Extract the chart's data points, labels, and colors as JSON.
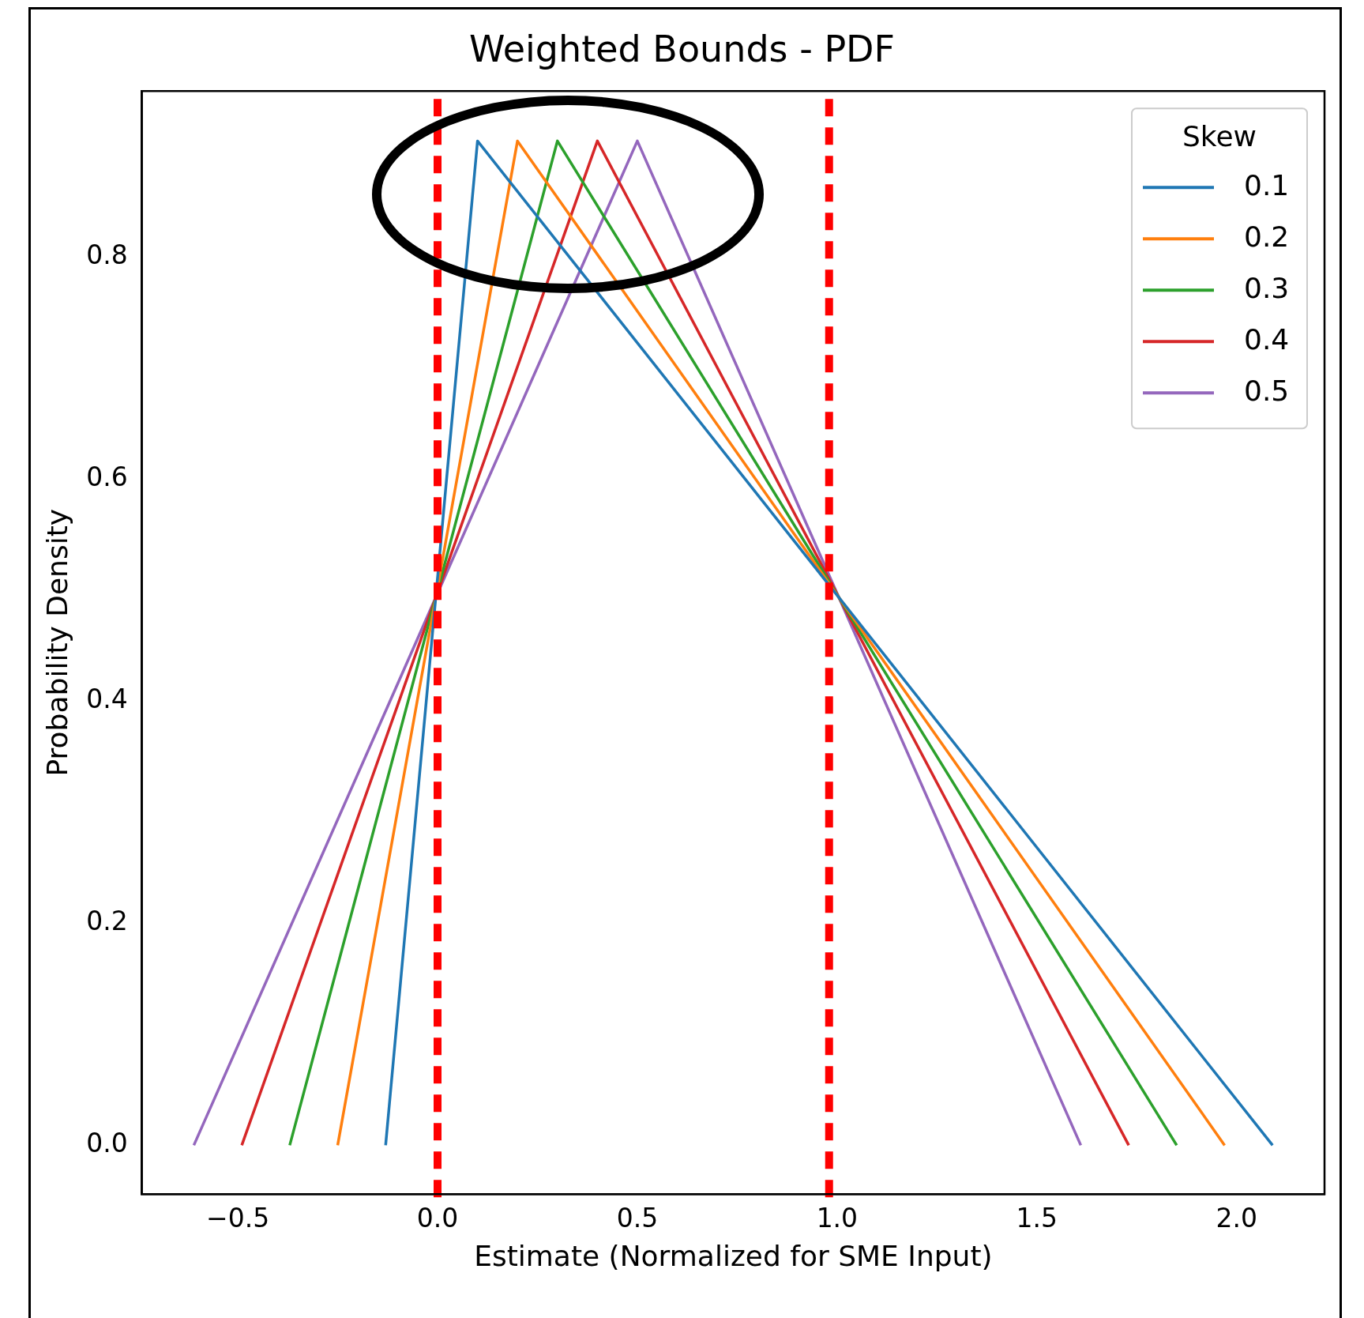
{
  "chart_data": {
    "type": "line",
    "title": "Weighted Bounds - PDF",
    "xlabel": "Estimate (Normalized for SME Input)",
    "ylabel": "Probability Density",
    "legend_title": "Skew",
    "legend": "top right",
    "grid": false,
    "marker": "none",
    "line_style": "solid",
    "xlim": [
      -0.74,
      2.22
    ],
    "ylim": [
      -0.044,
      0.95
    ],
    "xticks": [
      {
        "value": -0.5,
        "label": "−0.5"
      },
      {
        "value": 0,
        "label": "0.0"
      },
      {
        "value": 0.5,
        "label": "0.5"
      },
      {
        "value": 1,
        "label": "1.0"
      },
      {
        "value": 1.5,
        "label": "1.5"
      },
      {
        "value": 2,
        "label": "2.0"
      }
    ],
    "yticks": [
      {
        "value": 0,
        "label": "0.0"
      },
      {
        "value": 0.2,
        "label": "0.2"
      },
      {
        "value": 0.4,
        "label": "0.4"
      },
      {
        "value": 0.6,
        "label": "0.6"
      },
      {
        "value": 0.8,
        "label": "0.8"
      }
    ],
    "series": [
      {
        "name": "0.1",
        "color": "#1f77b4",
        "x": [
          -0.13,
          0.1,
          2.09
        ],
        "values": [
          0,
          0.905,
          0
        ]
      },
      {
        "name": "0.2",
        "color": "#ff7f0e",
        "x": [
          -0.25,
          0.2,
          1.97
        ],
        "values": [
          0,
          0.905,
          0
        ]
      },
      {
        "name": "0.3",
        "color": "#2ca02c",
        "x": [
          -0.37,
          0.3,
          1.85
        ],
        "values": [
          0,
          0.905,
          0
        ]
      },
      {
        "name": "0.4",
        "color": "#d62728",
        "x": [
          -0.49,
          0.4,
          1.73
        ],
        "values": [
          0,
          0.905,
          0
        ]
      },
      {
        "name": "0.5",
        "color": "#9467bd",
        "x": [
          -0.61,
          0.5,
          1.61
        ],
        "values": [
          0,
          0.905,
          0
        ]
      }
    ],
    "ref_lines": [
      {
        "axis": "x",
        "value": 0,
        "color": "#ff0000",
        "line_style": "dashed"
      },
      {
        "axis": "x",
        "value": 0.98,
        "color": "#ff0000",
        "line_style": "dashed"
      }
    ]
  }
}
